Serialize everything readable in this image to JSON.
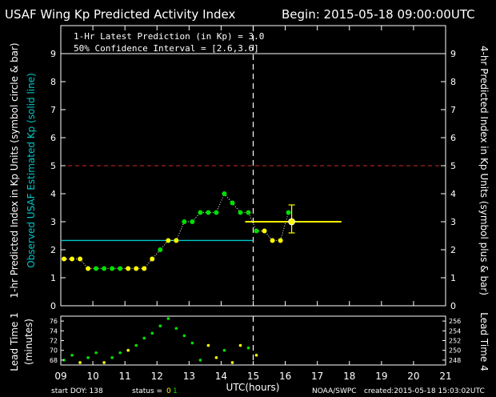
{
  "header": {
    "title": "USAF Wing Kp Predicted Activity Index",
    "begin": "Begin: 2015-05-18 09:00:00UTC"
  },
  "info": {
    "latest": "1-Hr Latest Prediction (in Kp) = 3.0",
    "confidence": "50% Confidence Interval   = [2.6,3.6]"
  },
  "axes": {
    "left_label_white": "1-hr Predicted Index in Kp Units (symbol circle & bar)",
    "left_label_cyan": "Observed USAF Estimated Kp (solid line)",
    "right_label": "4-hr Predicted Index in Kp Units (symbol plus & bar)",
    "lower_left_label_1": "Lead Time 1",
    "lower_left_label_2": "(minutes)",
    "lower_right_label": "Lead Time 4",
    "xlabel": "UTC(hours)"
  },
  "footer": {
    "start_doy": "start DOY:  138",
    "status_label": "status =",
    "status_val_a": "0",
    "status_val_b": "1",
    "source": "NOAA/SWPC",
    "created": "created:2015-05-18 15:03:02UTC"
  },
  "colors": {
    "green": "#00e000",
    "yellow": "#ffff00",
    "cyan": "#00c8c8",
    "red_dashed": "#c82828",
    "axis": "#ffffff"
  },
  "chart_data": [
    {
      "type": "scatter",
      "title": "USAF Wing Kp Predicted Activity Index",
      "xlim": [
        9,
        21
      ],
      "ylim": [
        0,
        10
      ],
      "x_ticks": [
        9,
        10,
        11,
        12,
        13,
        14,
        15,
        16,
        17,
        18,
        19,
        20,
        21
      ],
      "x_tick_labels": [
        "09",
        "10",
        "11",
        "12",
        "13",
        "14",
        "15",
        "16",
        "17",
        "18",
        "19",
        "20",
        "21"
      ],
      "y_ticks": [
        0,
        1,
        2,
        3,
        4,
        5,
        6,
        7,
        8,
        9
      ],
      "y_tick_labels": [
        "0",
        "1",
        "2",
        "3",
        "4",
        "5",
        "6",
        "7",
        "8",
        "9"
      ],
      "reference_lines": {
        "storm_threshold": 5,
        "upper_limit": 9,
        "current_time": 15
      },
      "observed_kp": {
        "x": [
          9,
          15
        ],
        "y": 2.33
      },
      "series": [
        {
          "symbol": "circle",
          "points": [
            [
              9.1,
              1.67,
              "yellow"
            ],
            [
              9.35,
              1.67,
              "yellow"
            ],
            [
              9.6,
              1.67,
              "yellow"
            ],
            [
              9.85,
              1.33,
              "yellow"
            ],
            [
              10.1,
              1.33,
              "green"
            ],
            [
              10.35,
              1.33,
              "green"
            ],
            [
              10.6,
              1.33,
              "green"
            ],
            [
              10.85,
              1.33,
              "green"
            ],
            [
              11.1,
              1.33,
              "yellow"
            ],
            [
              11.35,
              1.33,
              "yellow"
            ],
            [
              11.6,
              1.33,
              "yellow"
            ],
            [
              11.85,
              1.67,
              "yellow"
            ],
            [
              12.1,
              2.0,
              "green"
            ],
            [
              12.35,
              2.33,
              "yellow"
            ],
            [
              12.6,
              2.33,
              "yellow"
            ],
            [
              12.85,
              3.0,
              "green"
            ],
            [
              13.1,
              3.0,
              "green"
            ],
            [
              13.35,
              3.33,
              "green"
            ],
            [
              13.6,
              3.33,
              "green"
            ],
            [
              13.85,
              3.33,
              "green"
            ],
            [
              14.1,
              4.0,
              "green"
            ],
            [
              14.35,
              3.67,
              "green"
            ],
            [
              14.6,
              3.33,
              "green"
            ],
            [
              14.85,
              3.33,
              "green"
            ],
            [
              15.1,
              2.67,
              "green"
            ],
            [
              15.35,
              2.67,
              "yellow"
            ],
            [
              15.6,
              2.33,
              "yellow"
            ],
            [
              15.85,
              2.33,
              "yellow"
            ],
            [
              16.1,
              3.33,
              "green"
            ]
          ]
        }
      ],
      "prediction_1hr": {
        "x": 16.2,
        "y": 3.0,
        "ci": [
          2.6,
          3.6
        ]
      },
      "prediction_4hr": {
        "x_range": [
          14.75,
          17.75
        ],
        "y": 3.0
      }
    },
    {
      "type": "scatter",
      "xlim": [
        9,
        21
      ],
      "ylim_left": [
        67,
        77
      ],
      "ylim_right": [
        247,
        257
      ],
      "y_ticks_left": [
        68,
        70,
        72,
        74,
        76
      ],
      "y_ticks_right": [
        248,
        250,
        252,
        254,
        256
      ],
      "series": [
        {
          "symbol": "circle",
          "points": [
            [
              9.1,
              68.0,
              "green"
            ],
            [
              9.35,
              69.0,
              "green"
            ],
            [
              9.6,
              67.5,
              "yellow"
            ],
            [
              9.85,
              68.5,
              "green"
            ],
            [
              10.1,
              69.5,
              "green"
            ],
            [
              10.35,
              67.5,
              "yellow"
            ],
            [
              10.6,
              68.5,
              "green"
            ],
            [
              10.85,
              69.5,
              "green"
            ],
            [
              11.1,
              70.0,
              "yellow"
            ],
            [
              11.35,
              71.0,
              "green"
            ],
            [
              11.6,
              72.5,
              "green"
            ],
            [
              11.85,
              73.5,
              "green"
            ],
            [
              12.1,
              75.0,
              "green"
            ],
            [
              12.35,
              76.5,
              "green"
            ],
            [
              12.6,
              74.5,
              "green"
            ],
            [
              12.85,
              73.0,
              "green"
            ],
            [
              13.1,
              71.5,
              "green"
            ],
            [
              13.35,
              68.0,
              "green"
            ],
            [
              13.6,
              71.0,
              "yellow"
            ],
            [
              13.85,
              68.5,
              "yellow"
            ],
            [
              14.1,
              70.0,
              "green"
            ],
            [
              14.35,
              67.5,
              "yellow"
            ],
            [
              14.6,
              71.0,
              "yellow"
            ],
            [
              14.85,
              70.5,
              "green"
            ],
            [
              15.1,
              69.0,
              "yellow"
            ]
          ]
        }
      ]
    }
  ]
}
